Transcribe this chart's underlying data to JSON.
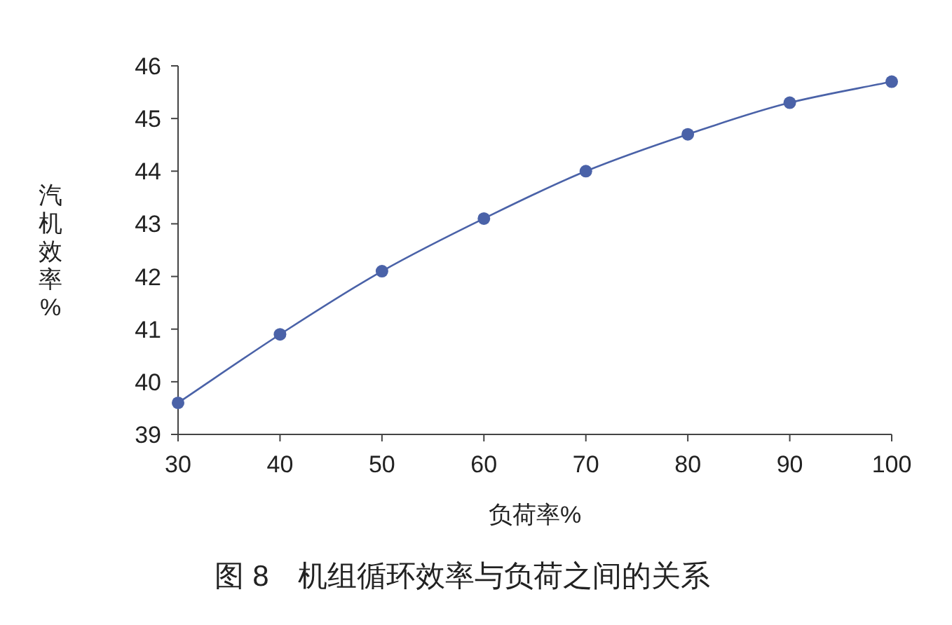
{
  "chart_data": {
    "type": "line",
    "title": "图 8　机组循环效率与负荷之间的关系",
    "xlabel": "负荷率%",
    "ylabel": "汽机效率%",
    "x": [
      30,
      40,
      50,
      60,
      70,
      80,
      90,
      100
    ],
    "series": [
      {
        "color": "#4a62a8",
        "values": [
          39.6,
          40.9,
          42.1,
          43.1,
          44.0,
          44.7,
          45.3,
          45.7
        ]
      }
    ],
    "xlim": [
      30,
      100
    ],
    "xticks": [
      30,
      40,
      50,
      60,
      70,
      80,
      90,
      100
    ],
    "ylim": [
      39,
      46
    ],
    "yticks": [
      39,
      40,
      41,
      42,
      43,
      44,
      45,
      46
    ],
    "marker": "circle",
    "line_style": "solid",
    "grid": false
  }
}
